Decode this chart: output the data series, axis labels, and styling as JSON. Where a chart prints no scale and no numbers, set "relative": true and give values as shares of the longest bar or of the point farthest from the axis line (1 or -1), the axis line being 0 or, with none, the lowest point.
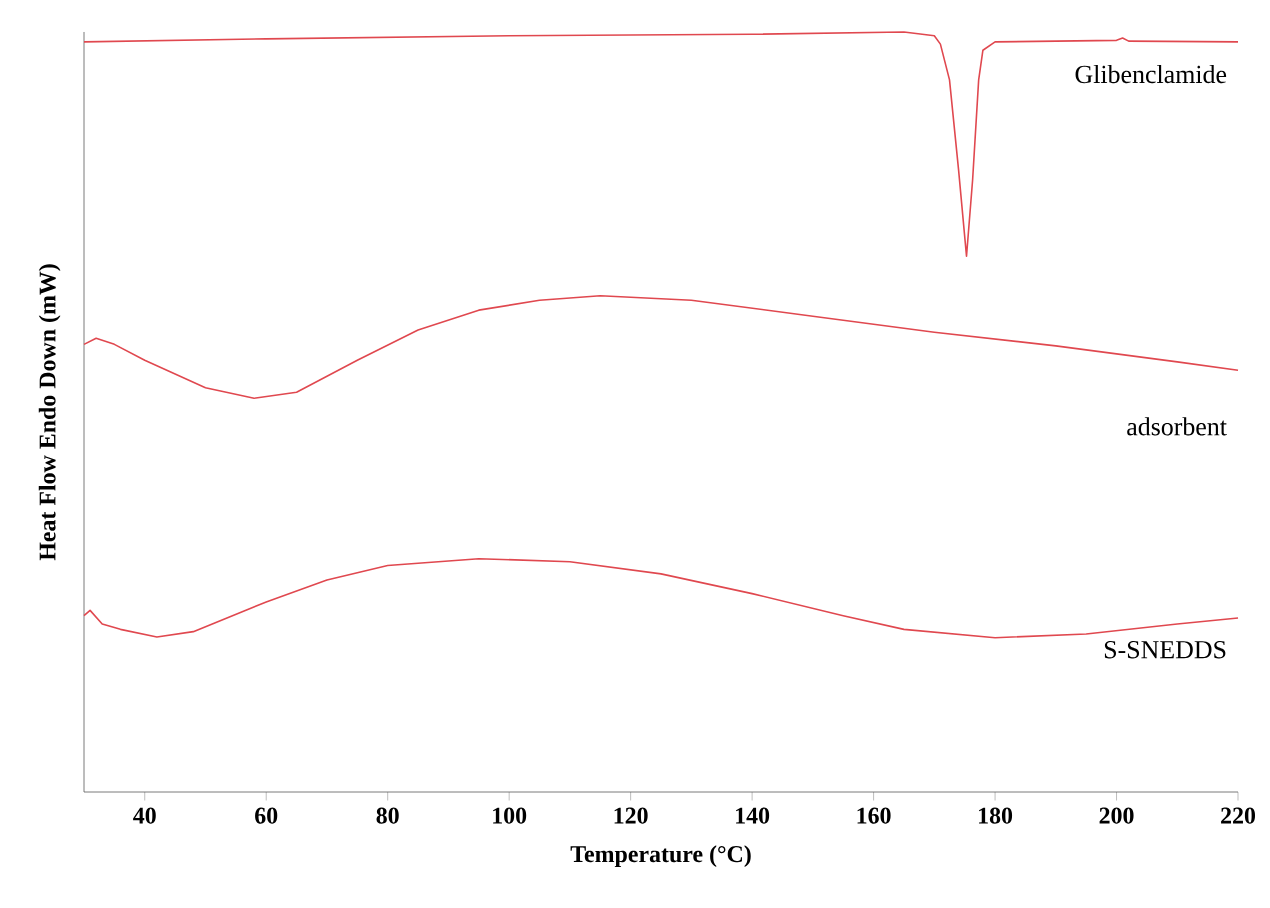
{
  "chart_data": {
    "type": "line",
    "relative": true,
    "xlabel": "Temperature  (°C)",
    "ylabel": "Heat Flow Endo Down (mW)",
    "xlim": [
      30,
      220
    ],
    "xticks": [
      40,
      60,
      80,
      100,
      120,
      140,
      160,
      180,
      200,
      220
    ],
    "grid": false,
    "marker": "none",
    "line_style": "solid",
    "series": [
      {
        "name": "Glibenclamide",
        "color": "#e0484f",
        "x": [
          30,
          60,
          100,
          140,
          165,
          170,
          171,
          172.5,
          174,
          175.3,
          176.3,
          177.3,
          178,
          180,
          200,
          201,
          202,
          220
        ],
        "values": [
          0.987,
          0.991,
          0.995,
          0.997,
          1.0,
          0.995,
          0.984,
          0.937,
          0.818,
          0.705,
          0.805,
          0.937,
          0.976,
          0.987,
          0.989,
          0.992,
          0.988,
          0.987
        ]
      },
      {
        "name": "adsorbent",
        "color": "#e0484f",
        "x": [
          30,
          32,
          35,
          40,
          50,
          58,
          65,
          75,
          85,
          95,
          105,
          115,
          130,
          150,
          170,
          190,
          210,
          220
        ],
        "values": [
          0.589,
          0.597,
          0.589,
          0.568,
          0.532,
          0.518,
          0.526,
          0.568,
          0.608,
          0.634,
          0.647,
          0.653,
          0.647,
          0.626,
          0.605,
          0.587,
          0.566,
          0.555
        ]
      },
      {
        "name": "S-SNEDDS",
        "color": "#e0484f",
        "x": [
          30,
          31,
          33,
          36,
          42,
          48,
          60,
          70,
          80,
          95,
          110,
          125,
          140,
          155,
          165,
          180,
          195,
          210,
          220
        ],
        "values": [
          0.232,
          0.239,
          0.221,
          0.214,
          0.204,
          0.211,
          0.25,
          0.279,
          0.298,
          0.307,
          0.303,
          0.287,
          0.261,
          0.232,
          0.214,
          0.203,
          0.208,
          0.221,
          0.229
        ]
      }
    ]
  }
}
